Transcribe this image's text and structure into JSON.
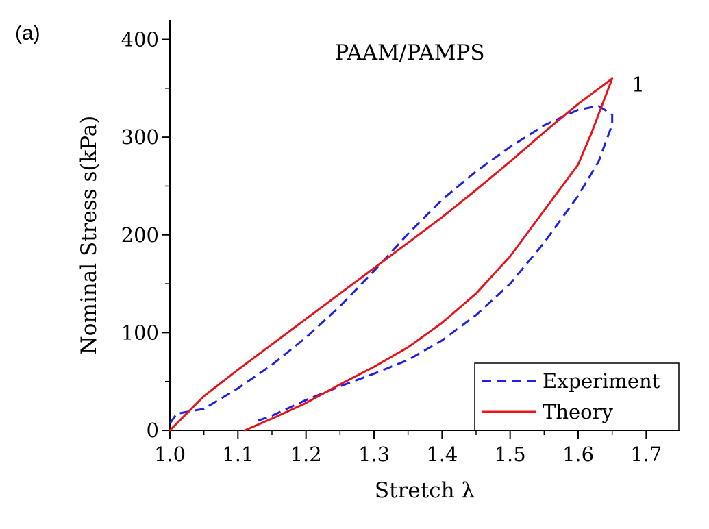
{
  "panel_label": "(a)",
  "chart_data": {
    "type": "line",
    "title": "PAAM/PAMPS",
    "xlabel": "Stretch λ",
    "ylabel": "Nominal Stress s(kPa)",
    "xlim": [
      1.0,
      1.75
    ],
    "ylim": [
      0,
      420
    ],
    "xticks": [
      1.0,
      1.1,
      1.2,
      1.3,
      1.4,
      1.5,
      1.6,
      1.7
    ],
    "xtick_labels": [
      "1.0",
      "1.1",
      "1.2",
      "1.3",
      "1.4",
      "1.5",
      "1.6",
      "1.7"
    ],
    "yticks": [
      0,
      100,
      200,
      300,
      400
    ],
    "ytick_labels": [
      "0",
      "100",
      "200",
      "300",
      "400"
    ],
    "grid": false,
    "legend_position": "bottom-right",
    "annotation": "1",
    "series": [
      {
        "name": "Experiment",
        "style": "dashed",
        "color": "#1f1fe6",
        "x": [
          1.0,
          1.01,
          1.05,
          1.1,
          1.15,
          1.2,
          1.25,
          1.3,
          1.35,
          1.4,
          1.45,
          1.5,
          1.55,
          1.6,
          1.63,
          1.65,
          1.65,
          1.63,
          1.6,
          1.55,
          1.5,
          1.45,
          1.4,
          1.35,
          1.3,
          1.25,
          1.2,
          1.15,
          1.13
        ],
        "y": [
          7,
          17,
          22,
          43,
          67,
          95,
          127,
          163,
          201,
          236,
          265,
          290,
          312,
          328,
          332,
          323,
          313,
          275,
          240,
          192,
          150,
          118,
          92,
          72,
          58,
          45,
          31,
          15,
          10
        ]
      },
      {
        "name": "Theory",
        "style": "solid",
        "color": "#e8141c",
        "x": [
          1.0,
          1.05,
          1.1,
          1.15,
          1.2,
          1.25,
          1.3,
          1.35,
          1.4,
          1.45,
          1.5,
          1.55,
          1.6,
          1.65,
          1.62,
          1.6,
          1.55,
          1.5,
          1.45,
          1.4,
          1.35,
          1.3,
          1.25,
          1.2,
          1.15,
          1.11
        ],
        "y": [
          0,
          35,
          62,
          88,
          114,
          140,
          166,
          192,
          218,
          246,
          275,
          305,
          334,
          360,
          305,
          272,
          225,
          178,
          140,
          110,
          85,
          65,
          47,
          28,
          12,
          0
        ]
      }
    ]
  },
  "colors": {
    "experiment": "#1f1fe6",
    "theory": "#e8141c",
    "axis": "#000000",
    "background": "#ffffff"
  }
}
